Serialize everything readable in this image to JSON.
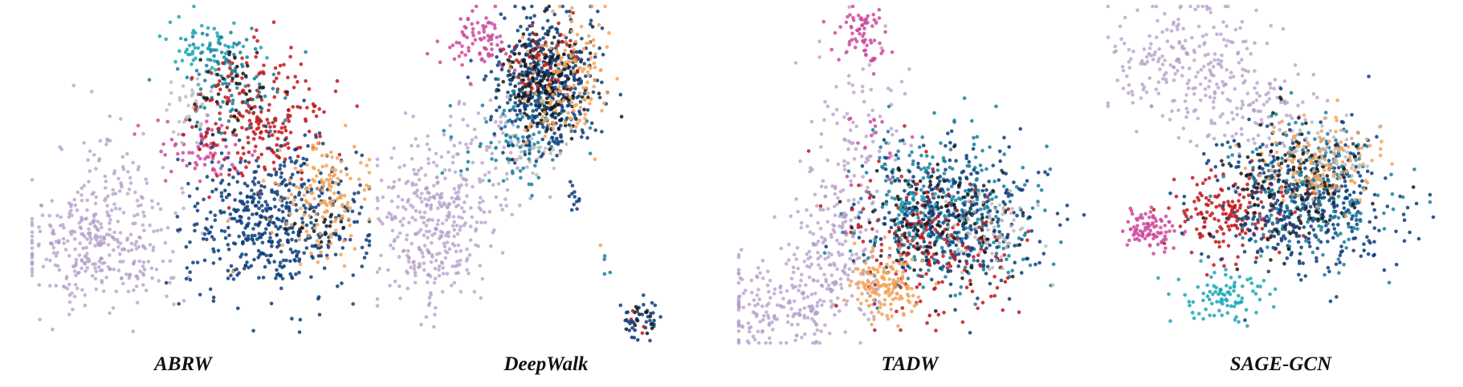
{
  "colors": {
    "purple": "#b39cc8",
    "magenta": "#cc4a9e",
    "cyan": "#1aa7b5",
    "teal": "#157f9c",
    "navy": "#0c3d7a",
    "red": "#c0171c",
    "orange": "#f2a35a",
    "gray": "#b4b4b4",
    "black": "#161616"
  },
  "chart_data": [
    {
      "type": "scatter",
      "title": "ABRW",
      "clusters": [
        {
          "color": "purple",
          "cx": 0.2,
          "cy": 0.28,
          "sx": 0.12,
          "sy": 0.1,
          "n": 330
        },
        {
          "color": "purple",
          "cx": 0.22,
          "cy": 0.48,
          "sx": 0.09,
          "sy": 0.1,
          "n": 60
        },
        {
          "color": "magenta",
          "cx": 0.52,
          "cy": 0.56,
          "sx": 0.08,
          "sy": 0.05,
          "n": 70
        },
        {
          "color": "cyan",
          "cx": 0.52,
          "cy": 0.88,
          "sx": 0.06,
          "sy": 0.04,
          "n": 60
        },
        {
          "color": "teal",
          "cx": 0.58,
          "cy": 0.78,
          "sx": 0.08,
          "sy": 0.08,
          "n": 110
        },
        {
          "color": "gray",
          "cx": 0.47,
          "cy": 0.68,
          "sx": 0.04,
          "sy": 0.05,
          "n": 35
        },
        {
          "color": "red",
          "cx": 0.68,
          "cy": 0.67,
          "sx": 0.1,
          "sy": 0.1,
          "n": 220
        },
        {
          "color": "black",
          "cx": 0.6,
          "cy": 0.75,
          "sx": 0.06,
          "sy": 0.07,
          "n": 40
        },
        {
          "color": "navy",
          "cx": 0.72,
          "cy": 0.35,
          "sx": 0.13,
          "sy": 0.11,
          "n": 520
        },
        {
          "color": "orange",
          "cx": 0.87,
          "cy": 0.42,
          "sx": 0.07,
          "sy": 0.08,
          "n": 150
        },
        {
          "color": "black",
          "cx": 0.86,
          "cy": 0.34,
          "sx": 0.04,
          "sy": 0.03,
          "n": 18
        }
      ]
    },
    {
      "type": "scatter",
      "title": "DeepWalk",
      "clusters": [
        {
          "color": "purple",
          "cx": 0.16,
          "cy": 0.34,
          "sx": 0.09,
          "sy": 0.13,
          "n": 330
        },
        {
          "color": "purple",
          "cx": 0.3,
          "cy": 0.55,
          "sx": 0.08,
          "sy": 0.1,
          "n": 80
        },
        {
          "color": "magenta",
          "cx": 0.3,
          "cy": 0.9,
          "sx": 0.05,
          "sy": 0.04,
          "n": 80
        },
        {
          "color": "gray",
          "cx": 0.46,
          "cy": 0.58,
          "sx": 0.05,
          "sy": 0.04,
          "n": 40
        },
        {
          "color": "teal",
          "cx": 0.42,
          "cy": 0.62,
          "sx": 0.09,
          "sy": 0.09,
          "n": 100
        },
        {
          "color": "navy",
          "cx": 0.5,
          "cy": 0.78,
          "sx": 0.07,
          "sy": 0.1,
          "n": 450
        },
        {
          "color": "black",
          "cx": 0.5,
          "cy": 0.78,
          "sx": 0.06,
          "sy": 0.08,
          "n": 180
        },
        {
          "color": "orange",
          "cx": 0.56,
          "cy": 0.78,
          "sx": 0.06,
          "sy": 0.1,
          "n": 150
        },
        {
          "color": "red",
          "cx": 0.48,
          "cy": 0.85,
          "sx": 0.05,
          "sy": 0.06,
          "n": 40
        },
        {
          "color": "navy",
          "cx": 0.58,
          "cy": 0.43,
          "sx": 0.012,
          "sy": 0.03,
          "n": 12
        },
        {
          "color": "navy",
          "cx": 0.78,
          "cy": 0.07,
          "sx": 0.03,
          "sy": 0.03,
          "n": 40
        },
        {
          "color": "black",
          "cx": 0.78,
          "cy": 0.07,
          "sx": 0.025,
          "sy": 0.025,
          "n": 12
        },
        {
          "color": "red",
          "cx": 0.78,
          "cy": 0.06,
          "sx": 0.025,
          "sy": 0.025,
          "n": 4
        },
        {
          "color": "teal",
          "cx": 0.68,
          "cy": 0.22,
          "sx": 0.008,
          "sy": 0.02,
          "n": 4
        },
        {
          "color": "orange",
          "cx": 0.66,
          "cy": 0.3,
          "sx": 0.004,
          "sy": 0.004,
          "n": 1
        }
      ]
    },
    {
      "type": "scatter",
      "title": "TADW",
      "clusters": [
        {
          "color": "purple",
          "cx": 0.14,
          "cy": 0.12,
          "sx": 0.1,
          "sy": 0.07,
          "n": 220
        },
        {
          "color": "purple",
          "cx": 0.3,
          "cy": 0.3,
          "sx": 0.07,
          "sy": 0.09,
          "n": 140
        },
        {
          "color": "purple",
          "cx": 0.34,
          "cy": 0.64,
          "sx": 0.07,
          "sy": 0.14,
          "n": 100
        },
        {
          "color": "magenta",
          "cx": 0.36,
          "cy": 0.92,
          "sx": 0.04,
          "sy": 0.04,
          "n": 70
        },
        {
          "color": "magenta",
          "cx": 0.37,
          "cy": 0.6,
          "sx": 0.05,
          "sy": 0.1,
          "n": 20
        },
        {
          "color": "teal",
          "cx": 0.6,
          "cy": 0.4,
          "sx": 0.13,
          "sy": 0.11,
          "n": 320
        },
        {
          "color": "navy",
          "cx": 0.62,
          "cy": 0.37,
          "sx": 0.13,
          "sy": 0.1,
          "n": 330
        },
        {
          "color": "red",
          "cx": 0.56,
          "cy": 0.3,
          "sx": 0.12,
          "sy": 0.11,
          "n": 180
        },
        {
          "color": "black",
          "cx": 0.58,
          "cy": 0.36,
          "sx": 0.1,
          "sy": 0.09,
          "n": 120
        },
        {
          "color": "gray",
          "cx": 0.72,
          "cy": 0.33,
          "sx": 0.06,
          "sy": 0.06,
          "n": 70
        },
        {
          "color": "orange",
          "cx": 0.43,
          "cy": 0.17,
          "sx": 0.05,
          "sy": 0.05,
          "n": 150
        },
        {
          "color": "cyan",
          "cx": 0.5,
          "cy": 0.4,
          "sx": 0.04,
          "sy": 0.04,
          "n": 25
        }
      ]
    },
    {
      "type": "scatter",
      "title": "SAGE-GCN",
      "clusters": [
        {
          "color": "purple",
          "cx": 0.22,
          "cy": 0.85,
          "sx": 0.11,
          "sy": 0.09,
          "n": 200
        },
        {
          "color": "purple",
          "cx": 0.4,
          "cy": 0.68,
          "sx": 0.1,
          "sy": 0.08,
          "n": 130
        },
        {
          "color": "magenta",
          "cx": 0.12,
          "cy": 0.33,
          "sx": 0.035,
          "sy": 0.03,
          "n": 90
        },
        {
          "color": "cyan",
          "cx": 0.34,
          "cy": 0.12,
          "sx": 0.08,
          "sy": 0.04,
          "n": 90
        },
        {
          "color": "red",
          "cx": 0.36,
          "cy": 0.37,
          "sx": 0.09,
          "sy": 0.07,
          "n": 180
        },
        {
          "color": "navy",
          "cx": 0.56,
          "cy": 0.4,
          "sx": 0.13,
          "sy": 0.11,
          "n": 420
        },
        {
          "color": "teal",
          "cx": 0.6,
          "cy": 0.44,
          "sx": 0.12,
          "sy": 0.1,
          "n": 200
        },
        {
          "color": "orange",
          "cx": 0.6,
          "cy": 0.52,
          "sx": 0.09,
          "sy": 0.06,
          "n": 150
        },
        {
          "color": "black",
          "cx": 0.52,
          "cy": 0.45,
          "sx": 0.1,
          "sy": 0.09,
          "n": 130
        },
        {
          "color": "gray",
          "cx": 0.66,
          "cy": 0.55,
          "sx": 0.06,
          "sy": 0.06,
          "n": 50
        }
      ]
    }
  ]
}
